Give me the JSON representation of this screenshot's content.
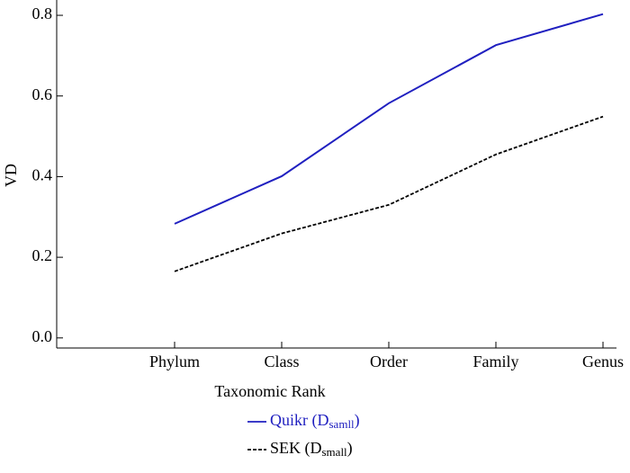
{
  "chart_data": {
    "type": "line",
    "xlabel": "Taxonomic Rank",
    "ylabel": "VD",
    "categories": [
      "Phylum",
      "Class",
      "Order",
      "Family",
      "Genus"
    ],
    "series": [
      {
        "name": [
          "Quikr (D",
          "samll",
          ")"
        ],
        "color": "#2020c0",
        "dash": false,
        "values": [
          0.283,
          0.401,
          0.582,
          0.726,
          0.803
        ]
      },
      {
        "name": [
          "SEK (D",
          "small",
          ")"
        ],
        "color": "#000000",
        "dash": true,
        "values": [
          0.165,
          0.259,
          0.33,
          0.455,
          0.549
        ]
      }
    ],
    "ylim": [
      -0.025,
      0.838
    ],
    "yticks": [
      {
        "value": 0,
        "label": "0.0"
      },
      0.2,
      0.4,
      0.6,
      0.8
    ]
  }
}
